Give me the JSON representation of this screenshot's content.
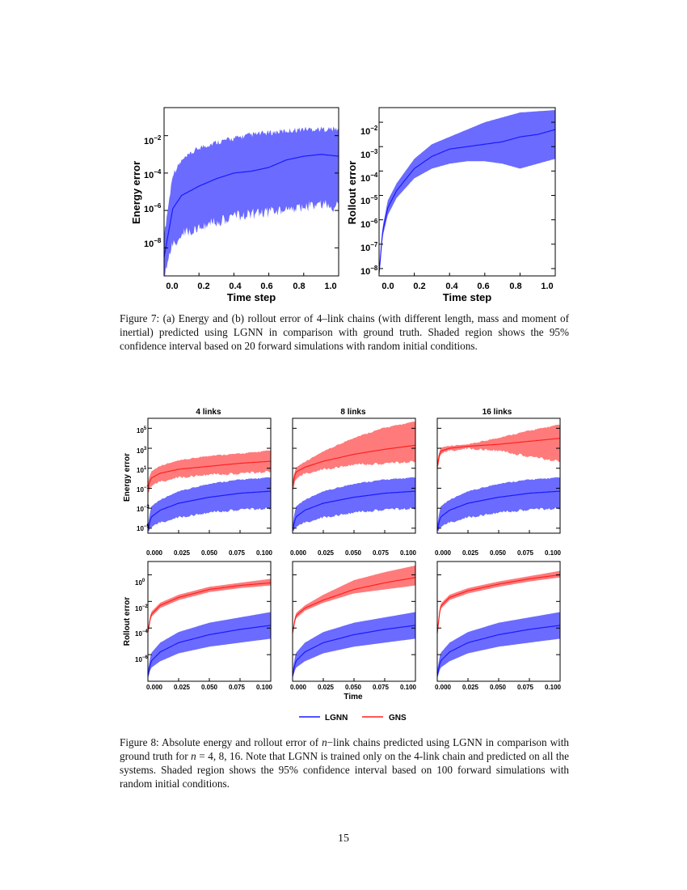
{
  "colors": {
    "lgnn_line": "#1a1aff",
    "lgnn_band": "#6b6bff",
    "gns_line": "#ff2020",
    "gns_band": "#ff7b7b"
  },
  "fig7": {
    "caption": "Figure 7: (a) Energy and (b) rollout error of 4–link chains (with different length, mass and moment of inertial) predicted using LGNN in comparison with ground truth. Shaded region shows the 95% confidence interval based on 20 forward simulations with random initial conditions.",
    "panels": [
      {
        "ylabel": "Energy error",
        "xlabel": "Time step",
        "xticks": [
          "0.0",
          "0.2",
          "0.4",
          "0.6",
          "0.8",
          "1.0"
        ],
        "yticks": [
          "10",
          "10",
          "10",
          "10"
        ],
        "yexp": [
          "−2",
          "−4",
          "−6",
          "−8"
        ]
      },
      {
        "ylabel": "Rollout error",
        "xlabel": "Time step",
        "xticks": [
          "0.0",
          "0.2",
          "0.4",
          "0.6",
          "0.8",
          "1.0"
        ],
        "yticks": [
          "10",
          "10",
          "10",
          "10",
          "10",
          "10",
          "10"
        ],
        "yexp": [
          "−2",
          "−3",
          "−4",
          "−5",
          "−6",
          "−7",
          "−8"
        ]
      }
    ]
  },
  "fig8": {
    "col_titles": [
      "4 links",
      "8 links",
      "16 links"
    ],
    "row_ylabels": [
      "Energy error",
      "Rollout error"
    ],
    "xticks": [
      "0.000",
      "0.025",
      "0.050",
      "0.075",
      "0.100"
    ],
    "xlabel": "Time",
    "energy_yticks": [
      "10",
      "10",
      "10",
      "10",
      "10",
      "10"
    ],
    "energy_yexp": [
      "5",
      "3",
      "1",
      "−1",
      "−3",
      "−5"
    ],
    "rollout_yticks": [
      "10",
      "10",
      "10",
      "10"
    ],
    "rollout_yexp": [
      "0",
      "−2",
      "−4",
      "−6"
    ],
    "legend": [
      "LGNN",
      "GNS"
    ],
    "caption_parts": {
      "p1": "Figure 8: Absolute energy and rollout error of ",
      "n": "n",
      "p2": "−link chains predicted using L",
      "gnn": "GNN",
      "p3": " in comparison with ground truth for ",
      "n2": "n",
      "p4": " = 4, 8, 16. Note that L",
      "gnn2": "GNN",
      "p5": " is trained only on the 4-link chain and predicted on all the systems. Shaded region shows the 95% confidence interval based on 100 forward simulations with random initial conditions."
    }
  },
  "chart_data": [
    {
      "type": "line",
      "title": "",
      "xlabel": "Time step",
      "ylabel": "Energy error",
      "yscale": "log",
      "xlim": [
        0,
        1
      ],
      "ylim_log10": [
        -9.5,
        -0.5
      ],
      "series": [
        {
          "x": [
            0.0,
            0.05,
            0.1,
            0.2,
            0.3,
            0.4,
            0.5,
            0.6,
            0.7,
            0.8,
            0.9,
            1.0
          ],
          "median_log10": [
            -8.5,
            -5.9,
            -5.2,
            -4.7,
            -4.3,
            -4.0,
            -3.9,
            -3.7,
            -3.3,
            -3.1,
            -3.0,
            -3.1
          ],
          "lo_log10": [
            -9.3,
            -7.5,
            -7.0,
            -6.6,
            -6.3,
            -6.0,
            -5.9,
            -5.8,
            -5.6,
            -5.5,
            -5.4,
            -5.5
          ],
          "hi_log10": [
            -7.5,
            -4.2,
            -3.5,
            -2.8,
            -2.5,
            -2.3,
            -2.1,
            -2.0,
            -1.9,
            -1.8,
            -1.8,
            -1.8
          ]
        }
      ]
    },
    {
      "type": "line",
      "title": "",
      "xlabel": "Time step",
      "ylabel": "Rollout error",
      "yscale": "log",
      "xlim": [
        0,
        1
      ],
      "ylim_log10": [
        -8.3,
        -1.4
      ],
      "series": [
        {
          "x": [
            0.0,
            0.02,
            0.05,
            0.1,
            0.2,
            0.3,
            0.4,
            0.5,
            0.6,
            0.7,
            0.8,
            0.9,
            1.0
          ],
          "median_log10": [
            -8.2,
            -6.5,
            -5.5,
            -4.8,
            -3.9,
            -3.4,
            -3.1,
            -3.0,
            -2.9,
            -2.8,
            -2.6,
            -2.5,
            -2.3
          ],
          "lo_log10": [
            -8.2,
            -6.7,
            -5.8,
            -5.1,
            -4.3,
            -3.9,
            -3.7,
            -3.6,
            -3.6,
            -3.7,
            -3.9,
            -3.7,
            -3.5
          ],
          "hi_log10": [
            -8.2,
            -6.3,
            -5.2,
            -4.5,
            -3.5,
            -2.9,
            -2.6,
            -2.3,
            -2.0,
            -1.8,
            -1.6,
            -1.55,
            -1.5
          ]
        }
      ]
    },
    {
      "type": "line",
      "xlabel": "",
      "ylabel": "Energy error",
      "title": "4 links",
      "yscale": "log",
      "xlim": [
        0,
        0.1
      ],
      "ylim_log10": [
        -5.5,
        6
      ],
      "series": [
        {
          "name": "LGNN",
          "x": [
            0,
            0.0025,
            0.01,
            0.025,
            0.05,
            0.075,
            0.1
          ],
          "median_log10": [
            -5.2,
            -3.9,
            -3.2,
            -2.5,
            -1.9,
            -1.5,
            -1.3
          ],
          "lo_log10": [
            -5.3,
            -4.8,
            -4.3,
            -3.8,
            -3.3,
            -3.0,
            -2.9
          ],
          "hi_log10": [
            -4.8,
            -2.9,
            -2.2,
            -1.4,
            -0.6,
            -0.2,
            0.0
          ]
        },
        {
          "name": "GNS",
          "x": [
            0,
            0.0025,
            0.01,
            0.025,
            0.05,
            0.075,
            0.1
          ],
          "median_log10": [
            -1.0,
            0.0,
            0.5,
            0.9,
            1.2,
            1.5,
            1.7
          ],
          "lo_log10": [
            -1.5,
            -0.7,
            -0.2,
            0.2,
            0.5,
            0.6,
            0.8
          ],
          "hi_log10": [
            -0.5,
            0.6,
            1.2,
            1.7,
            2.2,
            2.4,
            2.7
          ]
        }
      ]
    },
    {
      "type": "line",
      "xlabel": "",
      "ylabel": "",
      "title": "8 links",
      "yscale": "log",
      "xlim": [
        0,
        0.1
      ],
      "ylim_log10": [
        -5.5,
        6
      ],
      "series": [
        {
          "name": "LGNN",
          "x": [
            0,
            0.0025,
            0.01,
            0.025,
            0.05,
            0.075,
            0.1
          ],
          "median_log10": [
            -5.2,
            -3.9,
            -3.2,
            -2.5,
            -1.9,
            -1.5,
            -1.3
          ],
          "lo_log10": [
            -5.3,
            -4.8,
            -4.3,
            -3.8,
            -3.3,
            -3.0,
            -2.9
          ],
          "hi_log10": [
            -4.8,
            -2.9,
            -2.2,
            -1.4,
            -0.6,
            -0.2,
            0.0
          ]
        },
        {
          "name": "GNS",
          "x": [
            0,
            0.0025,
            0.01,
            0.025,
            0.05,
            0.075,
            0.1
          ],
          "median_log10": [
            -0.8,
            0.6,
            1.1,
            1.7,
            2.4,
            2.9,
            3.3
          ],
          "lo_log10": [
            -1.3,
            0.0,
            0.6,
            1.0,
            1.5,
            1.6,
            1.8
          ],
          "hi_log10": [
            -0.3,
            1.0,
            1.6,
            2.6,
            4.0,
            5.0,
            5.6
          ]
        }
      ]
    },
    {
      "type": "line",
      "xlabel": "",
      "ylabel": "",
      "title": "16 links",
      "yscale": "log",
      "xlim": [
        0,
        0.1
      ],
      "ylim_log10": [
        -5.5,
        6
      ],
      "series": [
        {
          "name": "LGNN",
          "x": [
            0,
            0.0025,
            0.01,
            0.025,
            0.05,
            0.075,
            0.1
          ],
          "median_log10": [
            -5.2,
            -3.9,
            -3.2,
            -2.5,
            -1.9,
            -1.5,
            -1.3
          ],
          "lo_log10": [
            -5.3,
            -4.8,
            -4.3,
            -3.8,
            -3.3,
            -3.0,
            -2.9
          ],
          "hi_log10": [
            -4.8,
            -2.9,
            -2.2,
            -1.4,
            -0.6,
            -0.2,
            0.0
          ]
        },
        {
          "name": "GNS",
          "x": [
            0,
            0.0025,
            0.01,
            0.025,
            0.05,
            0.075,
            0.1
          ],
          "median_log10": [
            1.2,
            2.7,
            3.0,
            3.2,
            3.4,
            3.7,
            4.0
          ],
          "lo_log10": [
            0.8,
            2.5,
            2.9,
            3.1,
            2.9,
            2.3,
            1.8
          ],
          "hi_log10": [
            1.6,
            3.0,
            3.2,
            3.3,
            4.0,
            4.7,
            5.3
          ]
        }
      ]
    },
    {
      "type": "line",
      "xlabel": "",
      "ylabel": "Rollout error",
      "title": "",
      "yscale": "log",
      "xlim": [
        0,
        0.1
      ],
      "ylim_log10": [
        -8,
        1
      ],
      "series": [
        {
          "name": "LGNN",
          "x": [
            0,
            0.0025,
            0.01,
            0.025,
            0.05,
            0.075,
            0.1
          ],
          "median_log10": [
            -7.6,
            -6.5,
            -5.8,
            -5.1,
            -4.5,
            -4.1,
            -3.8
          ],
          "lo_log10": [
            -7.8,
            -7.0,
            -6.5,
            -5.9,
            -5.4,
            -5.1,
            -4.8
          ],
          "hi_log10": [
            -7.2,
            -5.9,
            -5.1,
            -4.3,
            -3.6,
            -3.2,
            -2.8
          ]
        },
        {
          "name": "GNS",
          "x": [
            0,
            0.0025,
            0.01,
            0.025,
            0.05,
            0.075,
            0.1
          ],
          "median_log10": [
            -4.3,
            -3.0,
            -2.3,
            -1.7,
            -1.1,
            -0.8,
            -0.6
          ],
          "lo_log10": [
            -4.5,
            -3.2,
            -2.5,
            -1.9,
            -1.3,
            -1.0,
            -0.8
          ],
          "hi_log10": [
            -4.1,
            -2.8,
            -2.1,
            -1.5,
            -0.9,
            -0.6,
            -0.3
          ]
        }
      ]
    },
    {
      "type": "line",
      "xlabel": "Time",
      "ylabel": "",
      "title": "",
      "yscale": "log",
      "xlim": [
        0,
        0.1
      ],
      "ylim_log10": [
        -8,
        1
      ],
      "series": [
        {
          "name": "LGNN",
          "x": [
            0,
            0.0025,
            0.01,
            0.025,
            0.05,
            0.075,
            0.1
          ],
          "median_log10": [
            -7.6,
            -6.5,
            -5.8,
            -5.1,
            -4.5,
            -4.1,
            -3.8
          ],
          "lo_log10": [
            -7.8,
            -7.0,
            -6.5,
            -5.9,
            -5.4,
            -5.1,
            -4.8
          ],
          "hi_log10": [
            -7.2,
            -5.9,
            -5.1,
            -4.3,
            -3.6,
            -3.2,
            -2.8
          ]
        },
        {
          "name": "GNS",
          "x": [
            0,
            0.0025,
            0.01,
            0.025,
            0.05,
            0.075,
            0.1
          ],
          "median_log10": [
            -4.4,
            -3.1,
            -2.5,
            -1.9,
            -1.1,
            -0.6,
            -0.2
          ],
          "lo_log10": [
            -4.5,
            -3.3,
            -2.7,
            -2.1,
            -1.4,
            -1.1,
            -0.8
          ],
          "hi_log10": [
            -4.2,
            -2.9,
            -2.3,
            -1.5,
            -0.4,
            0.2,
            0.7
          ]
        }
      ]
    },
    {
      "type": "line",
      "xlabel": "",
      "ylabel": "",
      "title": "",
      "yscale": "log",
      "xlim": [
        0,
        0.1
      ],
      "ylim_log10": [
        -8,
        1
      ],
      "series": [
        {
          "name": "LGNN",
          "x": [
            0,
            0.0025,
            0.01,
            0.025,
            0.05,
            0.075,
            0.1
          ],
          "median_log10": [
            -7.6,
            -6.5,
            -5.8,
            -5.1,
            -4.5,
            -4.1,
            -3.8
          ],
          "lo_log10": [
            -7.8,
            -7.0,
            -6.5,
            -5.9,
            -5.4,
            -5.1,
            -4.8
          ],
          "hi_log10": [
            -7.2,
            -5.9,
            -5.1,
            -4.3,
            -3.6,
            -3.2,
            -2.8
          ]
        },
        {
          "name": "GNS",
          "x": [
            0,
            0.0025,
            0.01,
            0.025,
            0.05,
            0.075,
            0.1
          ],
          "median_log10": [
            -4.4,
            -2.4,
            -1.7,
            -1.2,
            -0.7,
            -0.3,
            0.0
          ],
          "lo_log10": [
            -4.6,
            -2.6,
            -1.9,
            -1.4,
            -0.9,
            -0.5,
            -0.2
          ],
          "hi_log10": [
            -4.2,
            -2.2,
            -1.5,
            -1.0,
            -0.5,
            -0.1,
            0.3
          ]
        }
      ]
    }
  ],
  "page_number": "15"
}
